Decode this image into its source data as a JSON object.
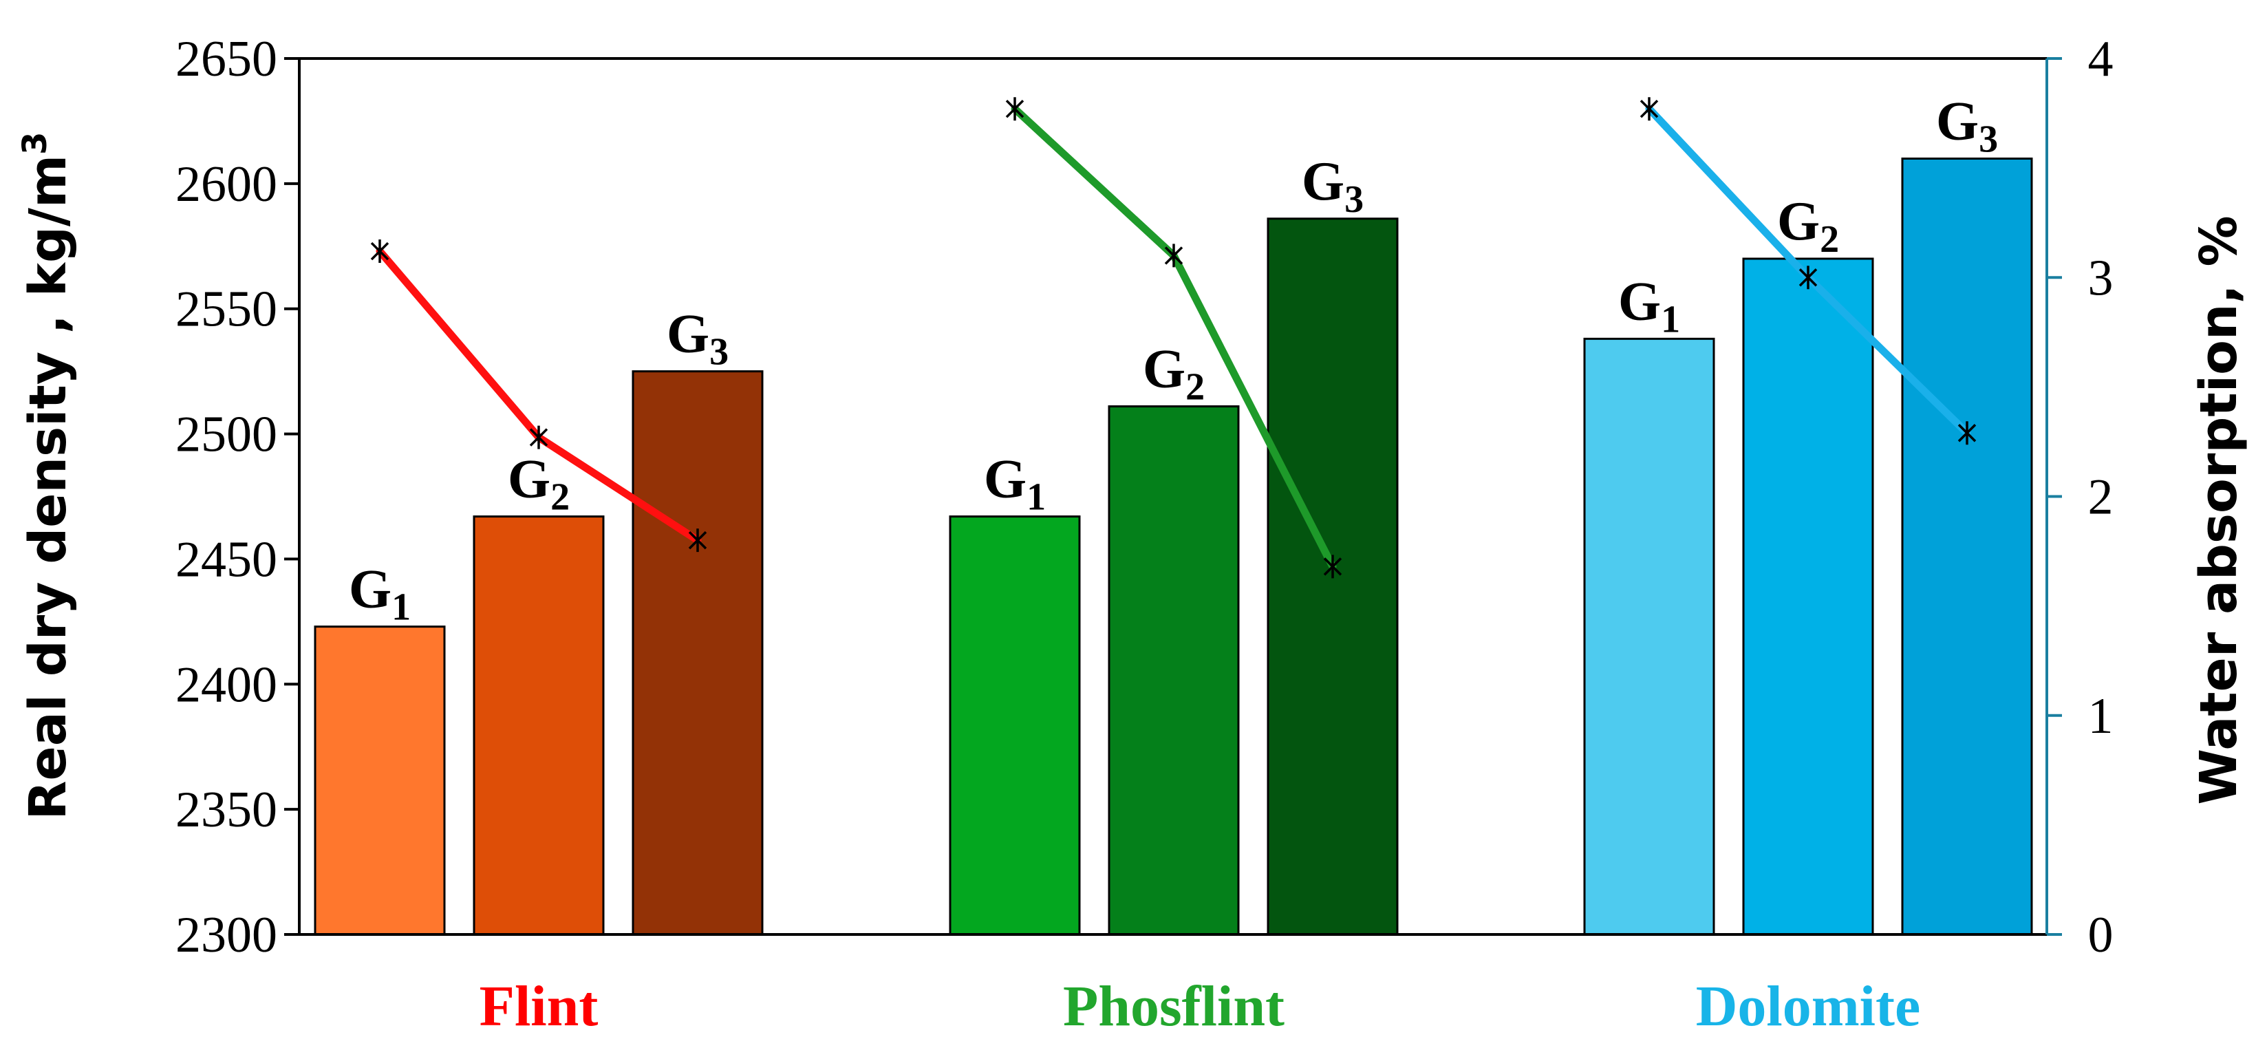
{
  "chart_data": {
    "type": "bar",
    "title": "",
    "categories": [
      "Flint",
      "Phosflint",
      "Dolomite"
    ],
    "category_colors": [
      "#ff0000",
      "#22a62d",
      "#18b4e8"
    ],
    "groups": [
      "G1",
      "G2",
      "G3"
    ],
    "group_label_main": "G",
    "group_label_subs": [
      "1",
      "2",
      "3"
    ],
    "series": [
      {
        "name": "Real dry density",
        "axis": "left",
        "type": "bar",
        "values": [
          [
            2423,
            2467,
            2525
          ],
          [
            2467,
            2511,
            2586
          ],
          [
            2538,
            2570,
            2610
          ]
        ],
        "colors": [
          [
            "#ff772d",
            "#de4e07",
            "#933206"
          ],
          [
            "#03a71f",
            "#04801a",
            "#03550f"
          ],
          [
            "#4ecbef",
            "#00b1e7",
            "#00a1d9"
          ]
        ]
      },
      {
        "name": "Water absorption",
        "axis": "right",
        "type": "line",
        "values": [
          [
            3.12,
            2.27,
            1.8
          ],
          [
            3.77,
            3.1,
            1.68
          ],
          [
            3.77,
            3.0,
            2.29
          ]
        ],
        "line_colors": [
          "#ff1010",
          "#1e9a2a",
          "#1ab0ea"
        ],
        "marker": "asterisk"
      }
    ],
    "ylabel_left_main": "Real dry density , kg/m",
    "ylabel_left_sup": "3",
    "ylabel_right": "Water absorption, %",
    "ylim_left": [
      2300,
      2650
    ],
    "yticks_left": [
      "2300",
      "2350",
      "2400",
      "2450",
      "2500",
      "2550",
      "2600",
      "2650"
    ],
    "ylim_right": [
      0,
      4
    ],
    "yticks_right": [
      "0",
      "1",
      "2",
      "3",
      "4"
    ],
    "right_axis_color": "#1a7fa0",
    "grid": false
  }
}
